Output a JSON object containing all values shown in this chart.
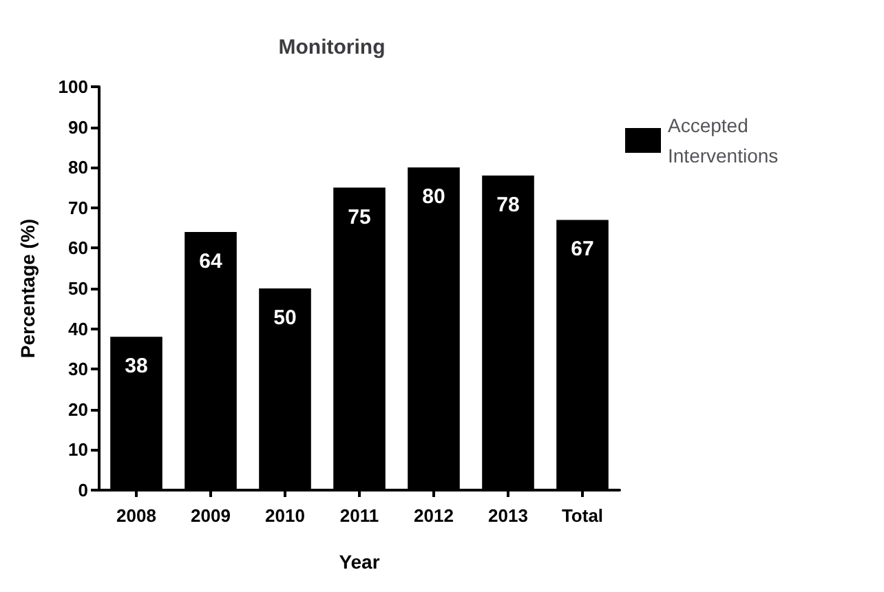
{
  "chart_data": {
    "type": "bar",
    "title": "Monitoring",
    "xlabel": "Year",
    "ylabel": "Percentage (%)",
    "categories": [
      "2008",
      "2009",
      "2010",
      "2011",
      "2012",
      "2013",
      "Total"
    ],
    "series": [
      {
        "name": "Accepted Interventions",
        "color": "#000000",
        "values": [
          38,
          64,
          50,
          75,
          80,
          78,
          67
        ]
      }
    ],
    "ylim": [
      0,
      100
    ],
    "yticks": [
      0,
      10,
      20,
      30,
      40,
      50,
      60,
      70,
      80,
      90,
      100
    ],
    "grid": false,
    "legend": "top right",
    "data_labels": true
  }
}
